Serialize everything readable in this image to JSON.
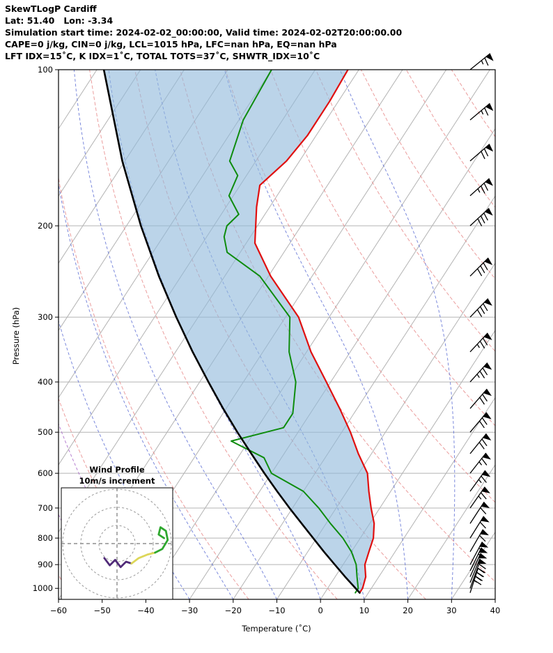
{
  "header": {
    "title": "SkewTLogP Cardiff",
    "location": "Lat: 51.40   Lon: -3.34",
    "times": "Simulation start time: 2024-02-02_00:00:00, Valid time: 2024-02-02T20:00:00.00",
    "indices1": "CAPE=0 j/kg, CIN=0 j/kg, LCL=1015 hPa, LFC=nan hPa, EQ=nan hPa",
    "indices2": "LFT IDX=15˚C, K IDX=1˚C, TOTAL TOTS=37˚C, SHWTR_IDX=10˚C"
  },
  "chart_data": {
    "type": "line",
    "variant": "skewT-logP",
    "xlabel": "Temperature (˚C)",
    "ylabel": "Pressure (hPa)",
    "xlim": [
      -60,
      40
    ],
    "pressure_lim": [
      100,
      1050
    ],
    "x_ticks": [
      -60,
      -50,
      -40,
      -30,
      -20,
      -10,
      0,
      10,
      20,
      30,
      40
    ],
    "p_ticks": [
      100,
      200,
      300,
      400,
      500,
      600,
      700,
      800,
      900,
      1000
    ],
    "skew": 0.65,
    "isotherm_step": 10,
    "dry_adiabats_theta": [
      -60,
      -40,
      -20,
      0,
      20,
      40,
      60,
      80,
      100,
      120,
      140,
      160,
      180
    ],
    "moist_adiabats_T0": [
      -60,
      -50,
      -40,
      -30,
      -20,
      -10,
      0,
      10,
      20,
      30,
      40
    ],
    "points_format": "[pressure_hPa, temperature_C]",
    "series": [
      {
        "name": "temperature",
        "color": "#e01010",
        "width": 2.2,
        "points": [
          [
            1020,
            8
          ],
          [
            1000,
            8
          ],
          [
            950,
            7
          ],
          [
            900,
            5
          ],
          [
            850,
            4
          ],
          [
            800,
            3
          ],
          [
            750,
            1
          ],
          [
            700,
            -2
          ],
          [
            650,
            -5
          ],
          [
            600,
            -8
          ],
          [
            550,
            -13
          ],
          [
            500,
            -18
          ],
          [
            450,
            -24
          ],
          [
            400,
            -31
          ],
          [
            350,
            -39
          ],
          [
            300,
            -47
          ],
          [
            250,
            -59.5
          ],
          [
            216,
            -68
          ],
          [
            184,
            -73
          ],
          [
            167,
            -75.5
          ],
          [
            150,
            -73
          ],
          [
            134,
            -72
          ],
          [
            115,
            -72
          ],
          [
            100,
            -72.5
          ]
        ]
      },
      {
        "name": "dewpoint",
        "color": "#0e8c0e",
        "width": 2,
        "points": [
          [
            1020,
            7
          ],
          [
            1000,
            7
          ],
          [
            950,
            5
          ],
          [
            900,
            3
          ],
          [
            850,
            0
          ],
          [
            800,
            -4
          ],
          [
            750,
            -9
          ],
          [
            700,
            -14
          ],
          [
            650,
            -20
          ],
          [
            600,
            -30
          ],
          [
            560,
            -34
          ],
          [
            520,
            -44
          ],
          [
            490,
            -34
          ],
          [
            460,
            -34
          ],
          [
            400,
            -38
          ],
          [
            350,
            -44
          ],
          [
            300,
            -49
          ],
          [
            250,
            -62
          ],
          [
            225,
            -73
          ],
          [
            210,
            -76
          ],
          [
            200,
            -77
          ],
          [
            190,
            -76
          ],
          [
            175,
            -81
          ],
          [
            160,
            -82
          ],
          [
            150,
            -86
          ],
          [
            125,
            -89
          ],
          [
            100,
            -90
          ]
        ]
      },
      {
        "name": "parcel",
        "color": "#000000",
        "width": 2.6,
        "points": [
          [
            1020,
            8
          ],
          [
            1000,
            6.4
          ],
          [
            950,
            2.3
          ],
          [
            900,
            -1.9
          ],
          [
            850,
            -6.3
          ],
          [
            800,
            -10.8
          ],
          [
            750,
            -15.6
          ],
          [
            700,
            -20.7
          ],
          [
            650,
            -26.0
          ],
          [
            600,
            -31.6
          ],
          [
            550,
            -37.5
          ],
          [
            500,
            -43.9
          ],
          [
            450,
            -50.7
          ],
          [
            400,
            -58.0
          ],
          [
            350,
            -66.1
          ],
          [
            300,
            -75.0
          ],
          [
            250,
            -85.1
          ],
          [
            200,
            -96.7
          ],
          [
            150,
            -110.6
          ],
          [
            100,
            -128.4
          ]
        ]
      }
    ],
    "shaded_area": {
      "between": [
        "parcel",
        "temperature"
      ],
      "color": "#92badb",
      "opacity": 0.62
    },
    "wind_barbs": {
      "color": "#000000",
      "levels": [
        {
          "p": 1020,
          "speed": 40,
          "dir": 18
        },
        {
          "p": 1000,
          "speed": 45,
          "dir": 20
        },
        {
          "p": 975,
          "speed": 50,
          "dir": 22
        },
        {
          "p": 950,
          "speed": 50,
          "dir": 24
        },
        {
          "p": 925,
          "speed": 55,
          "dir": 26
        },
        {
          "p": 900,
          "speed": 55,
          "dir": 28
        },
        {
          "p": 850,
          "speed": 60,
          "dir": 30
        },
        {
          "p": 800,
          "speed": 60,
          "dir": 32
        },
        {
          "p": 750,
          "speed": 60,
          "dir": 33
        },
        {
          "p": 700,
          "speed": 65,
          "dir": 35
        },
        {
          "p": 650,
          "speed": 65,
          "dir": 36
        },
        {
          "p": 600,
          "speed": 65,
          "dir": 38
        },
        {
          "p": 550,
          "speed": 70,
          "dir": 39
        },
        {
          "p": 500,
          "speed": 70,
          "dir": 40
        },
        {
          "p": 450,
          "speed": 70,
          "dir": 41
        },
        {
          "p": 400,
          "speed": 75,
          "dir": 42
        },
        {
          "p": 350,
          "speed": 75,
          "dir": 43
        },
        {
          "p": 300,
          "speed": 80,
          "dir": 44
        },
        {
          "p": 250,
          "speed": 80,
          "dir": 45
        },
        {
          "p": 200,
          "speed": 80,
          "dir": 47
        },
        {
          "p": 175,
          "speed": 75,
          "dir": 48
        },
        {
          "p": 150,
          "speed": 70,
          "dir": 49
        },
        {
          "p": 125,
          "speed": 65,
          "dir": 50
        },
        {
          "p": 100,
          "speed": 65,
          "dir": 51
        }
      ]
    },
    "hodograph": {
      "title": "Wind Profile",
      "subtitle": "10m/s increment",
      "ring_increment_ms": 10,
      "rings": [
        10,
        20,
        30
      ],
      "points_format": "[u_ms, v_ms]",
      "segments": [
        {
          "color": "#502a78",
          "points": [
            [
              -7,
              -8
            ],
            [
              -4,
              -12
            ],
            [
              -1,
              -9
            ],
            [
              2,
              -13
            ],
            [
              5,
              -10
            ],
            [
              8,
              -11
            ]
          ]
        },
        {
          "color": "#ddd75a",
          "points": [
            [
              8,
              -11
            ],
            [
              12,
              -8
            ],
            [
              17,
              -6
            ],
            [
              21,
              -5
            ]
          ]
        },
        {
          "color": "#2fa82f",
          "points": [
            [
              21,
              -5
            ],
            [
              25,
              -3
            ],
            [
              28,
              2
            ],
            [
              27,
              7
            ],
            [
              24,
              9
            ],
            [
              23,
              5
            ],
            [
              26,
              3
            ]
          ]
        }
      ]
    },
    "style": {
      "grid_color": "#b3b3b3",
      "isotherm_color": "#b3b3b3",
      "dry_adiabat_color": "#e68585",
      "moist_adiabat_color": "#5a6bd3",
      "moist_adiabat_cold_color": "#a45fc5",
      "frame_color": "#000000"
    }
  }
}
